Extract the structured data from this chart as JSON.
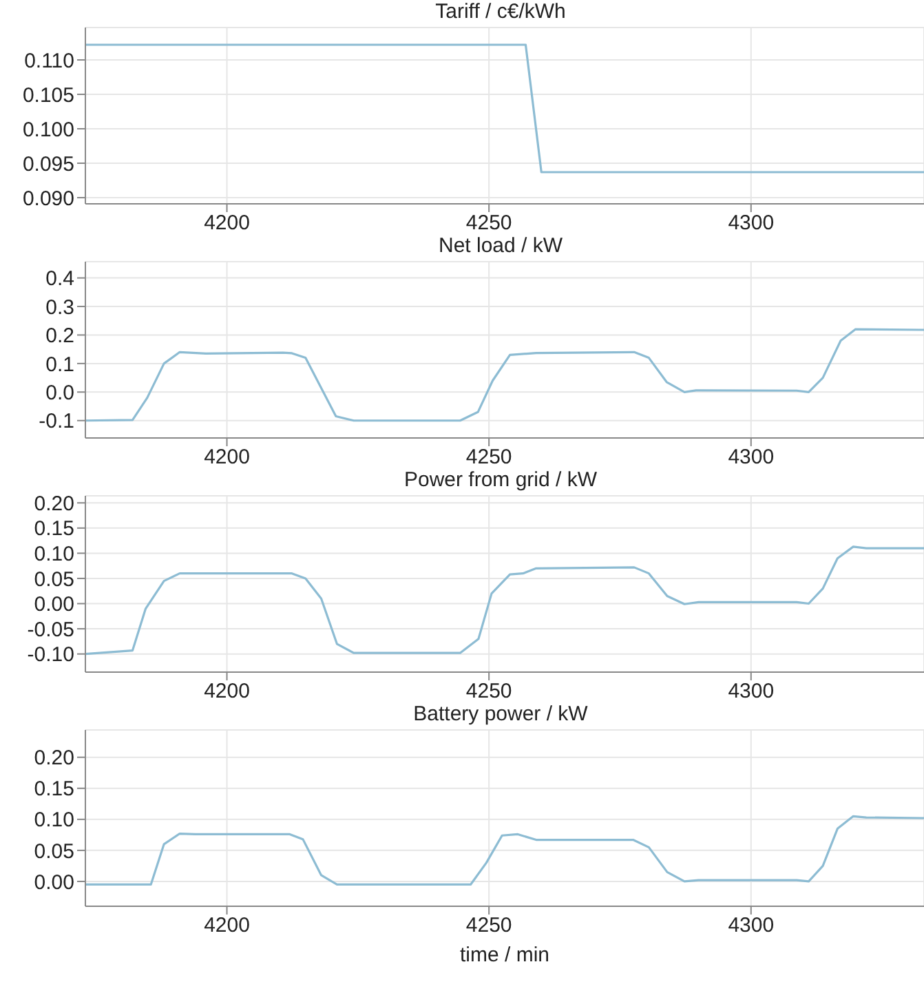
{
  "chart_data": [
    {
      "type": "line",
      "title": "Tariff / c€/kWh",
      "x": [
        4173,
        4257,
        4260,
        4333
      ],
      "values": [
        0.1122,
        0.1122,
        0.0937,
        0.0937
      ],
      "color": "#8dbcd3",
      "xlim": [
        4173,
        4333
      ],
      "xticks": [
        4200,
        4250,
        4300
      ],
      "ylim": [
        0.0891,
        0.1147
      ],
      "yticks": [
        {
          "value": 0.09,
          "label": "0.090"
        },
        {
          "value": 0.095,
          "label": "0.095"
        },
        {
          "value": 0.1,
          "label": "0.100"
        },
        {
          "value": 0.105,
          "label": "0.105"
        },
        {
          "value": 0.11,
          "label": "0.110"
        }
      ],
      "grid": true
    },
    {
      "type": "line",
      "title": "Net load / kW",
      "x": [
        4173,
        4182,
        4184.8,
        4188,
        4191,
        4196,
        4210.7,
        4212.4,
        4215,
        4220.8,
        4224.2,
        4244.5,
        4247.9,
        4250.7,
        4254,
        4259,
        4277.7,
        4280.5,
        4283.9,
        4287.3,
        4289.5,
        4308.7,
        4311,
        4313.7,
        4317.1,
        4319.9,
        4333
      ],
      "values": [
        -0.1,
        -0.098,
        -0.02,
        0.1,
        0.14,
        0.135,
        0.138,
        0.136,
        0.12,
        -0.085,
        -0.1,
        -0.1,
        -0.07,
        0.04,
        0.13,
        0.137,
        0.14,
        0.12,
        0.035,
        0.0,
        0.006,
        0.005,
        0.0,
        0.05,
        0.18,
        0.22,
        0.218
      ],
      "color": "#8dbcd3",
      "xlim": [
        4173,
        4333
      ],
      "xticks": [
        4200,
        4250,
        4300
      ],
      "ylim": [
        -0.161,
        0.457
      ],
      "yticks": [
        {
          "value": -0.1,
          "label": "-0.1"
        },
        {
          "value": 0,
          "label": "0.0"
        },
        {
          "value": 0.1,
          "label": "0.1"
        },
        {
          "value": 0.2,
          "label": "0.2"
        },
        {
          "value": 0.3,
          "label": "0.3"
        },
        {
          "value": 0.4,
          "label": "0.4"
        }
      ],
      "grid": true
    },
    {
      "type": "line",
      "title": "Power from grid / kW",
      "x": [
        4173,
        4182,
        4184.5,
        4188,
        4191,
        4212.4,
        4215,
        4218,
        4221,
        4224.2,
        4244.5,
        4248,
        4250.5,
        4254,
        4256.5,
        4259,
        4277.7,
        4280.5,
        4284,
        4287.3,
        4290,
        4308.7,
        4311,
        4313.7,
        4316.5,
        4319.5,
        4322,
        4333
      ],
      "values": [
        -0.1,
        -0.093,
        -0.01,
        0.045,
        0.06,
        0.06,
        0.05,
        0.01,
        -0.08,
        -0.098,
        -0.098,
        -0.07,
        0.02,
        0.058,
        0.06,
        0.07,
        0.072,
        0.06,
        0.015,
        -0.001,
        0.003,
        0.003,
        0.0,
        0.03,
        0.09,
        0.113,
        0.11,
        0.11
      ],
      "color": "#8dbcd3",
      "xlim": [
        4173,
        4333
      ],
      "xticks": [
        4200,
        4250,
        4300
      ],
      "ylim": [
        -0.136,
        0.214
      ],
      "yticks": [
        {
          "value": -0.1,
          "label": "-0.10"
        },
        {
          "value": -0.05,
          "label": "-0.05"
        },
        {
          "value": 0,
          "label": "0.00"
        },
        {
          "value": 0.05,
          "label": "0.05"
        },
        {
          "value": 0.1,
          "label": "0.10"
        },
        {
          "value": 0.15,
          "label": "0.15"
        },
        {
          "value": 0.2,
          "label": "0.20"
        }
      ],
      "grid": true
    },
    {
      "type": "line",
      "title": "Battery power / kW",
      "xlabel": "time / min",
      "x": [
        4173,
        4185.5,
        4188,
        4191,
        4194,
        4212,
        4214.5,
        4218,
        4221,
        4246.5,
        4249.5,
        4252.5,
        4255.5,
        4259,
        4277.5,
        4280.5,
        4284,
        4287.3,
        4290,
        4308.7,
        4311,
        4313.7,
        4316.5,
        4319.5,
        4322,
        4333
      ],
      "values": [
        -0.005,
        -0.005,
        0.06,
        0.077,
        0.076,
        0.076,
        0.068,
        0.01,
        -0.005,
        -0.005,
        0.03,
        0.074,
        0.076,
        0.067,
        0.067,
        0.055,
        0.015,
        0.0,
        0.002,
        0.002,
        0.0,
        0.025,
        0.085,
        0.105,
        0.103,
        0.102
      ],
      "color": "#8dbcd3",
      "xlim": [
        4173,
        4333
      ],
      "xticks": [
        4200,
        4250,
        4300
      ],
      "ylim": [
        -0.04,
        0.244
      ],
      "yticks": [
        {
          "value": 0,
          "label": "0.00"
        },
        {
          "value": 0.05,
          "label": "0.05"
        },
        {
          "value": 0.1,
          "label": "0.10"
        },
        {
          "value": 0.15,
          "label": "0.15"
        },
        {
          "value": 0.2,
          "label": "0.20"
        }
      ],
      "grid": true
    }
  ]
}
